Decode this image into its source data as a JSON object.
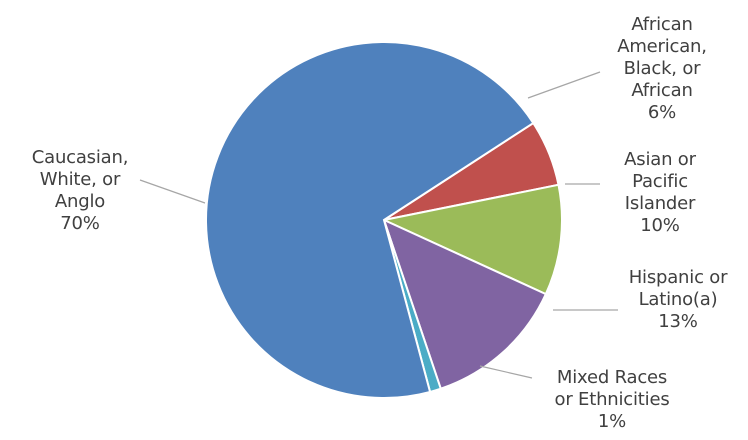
{
  "chart_data": {
    "type": "pie",
    "start_angle_deg": 57,
    "direction": "clockwise",
    "slices": [
      {
        "name_lines": [
          "African",
          "American,",
          "Black, or",
          "African"
        ],
        "pct_label": "6%",
        "value": 6,
        "color": "#c0504d"
      },
      {
        "name_lines": [
          "Asian or",
          "Pacific",
          "Islander"
        ],
        "pct_label": "10%",
        "value": 10,
        "color": "#9bbb59"
      },
      {
        "name_lines": [
          "Hispanic or",
          "Latino(a)"
        ],
        "pct_label": "13%",
        "value": 13,
        "color": "#8064a2"
      },
      {
        "name_lines": [
          "Mixed Races",
          "or Ethnicities"
        ],
        "pct_label": "1%",
        "value": 1,
        "color": "#4bacc6"
      },
      {
        "name_lines": [
          "Caucasian,",
          "White, or",
          "Anglo"
        ],
        "pct_label": "70%",
        "value": 70,
        "color": "#4f81bd"
      }
    ]
  }
}
